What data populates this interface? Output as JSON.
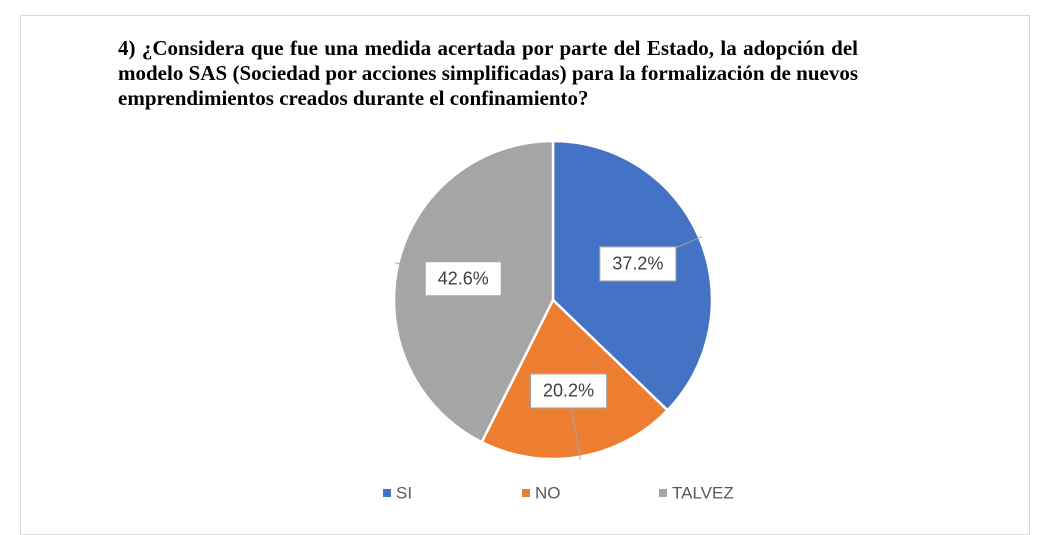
{
  "chart_data": {
    "type": "pie",
    "title": "4) ¿Considera que fue una medida acertada por parte del Estado, la adopción del modelo SAS (Sociedad por acciones simplificadas) para la formalización de nuevos emprendimientos creados durante el confinamiento?",
    "categories": [
      "SI",
      "NO",
      "TALVEZ"
    ],
    "values": [
      37.2,
      20.2,
      42.6
    ],
    "value_labels": [
      "37.2%",
      "20.2%",
      "42.6%"
    ],
    "colors": [
      "#4472c4",
      "#ed7d31",
      "#a5a5a5"
    ],
    "legend": "bottom"
  }
}
